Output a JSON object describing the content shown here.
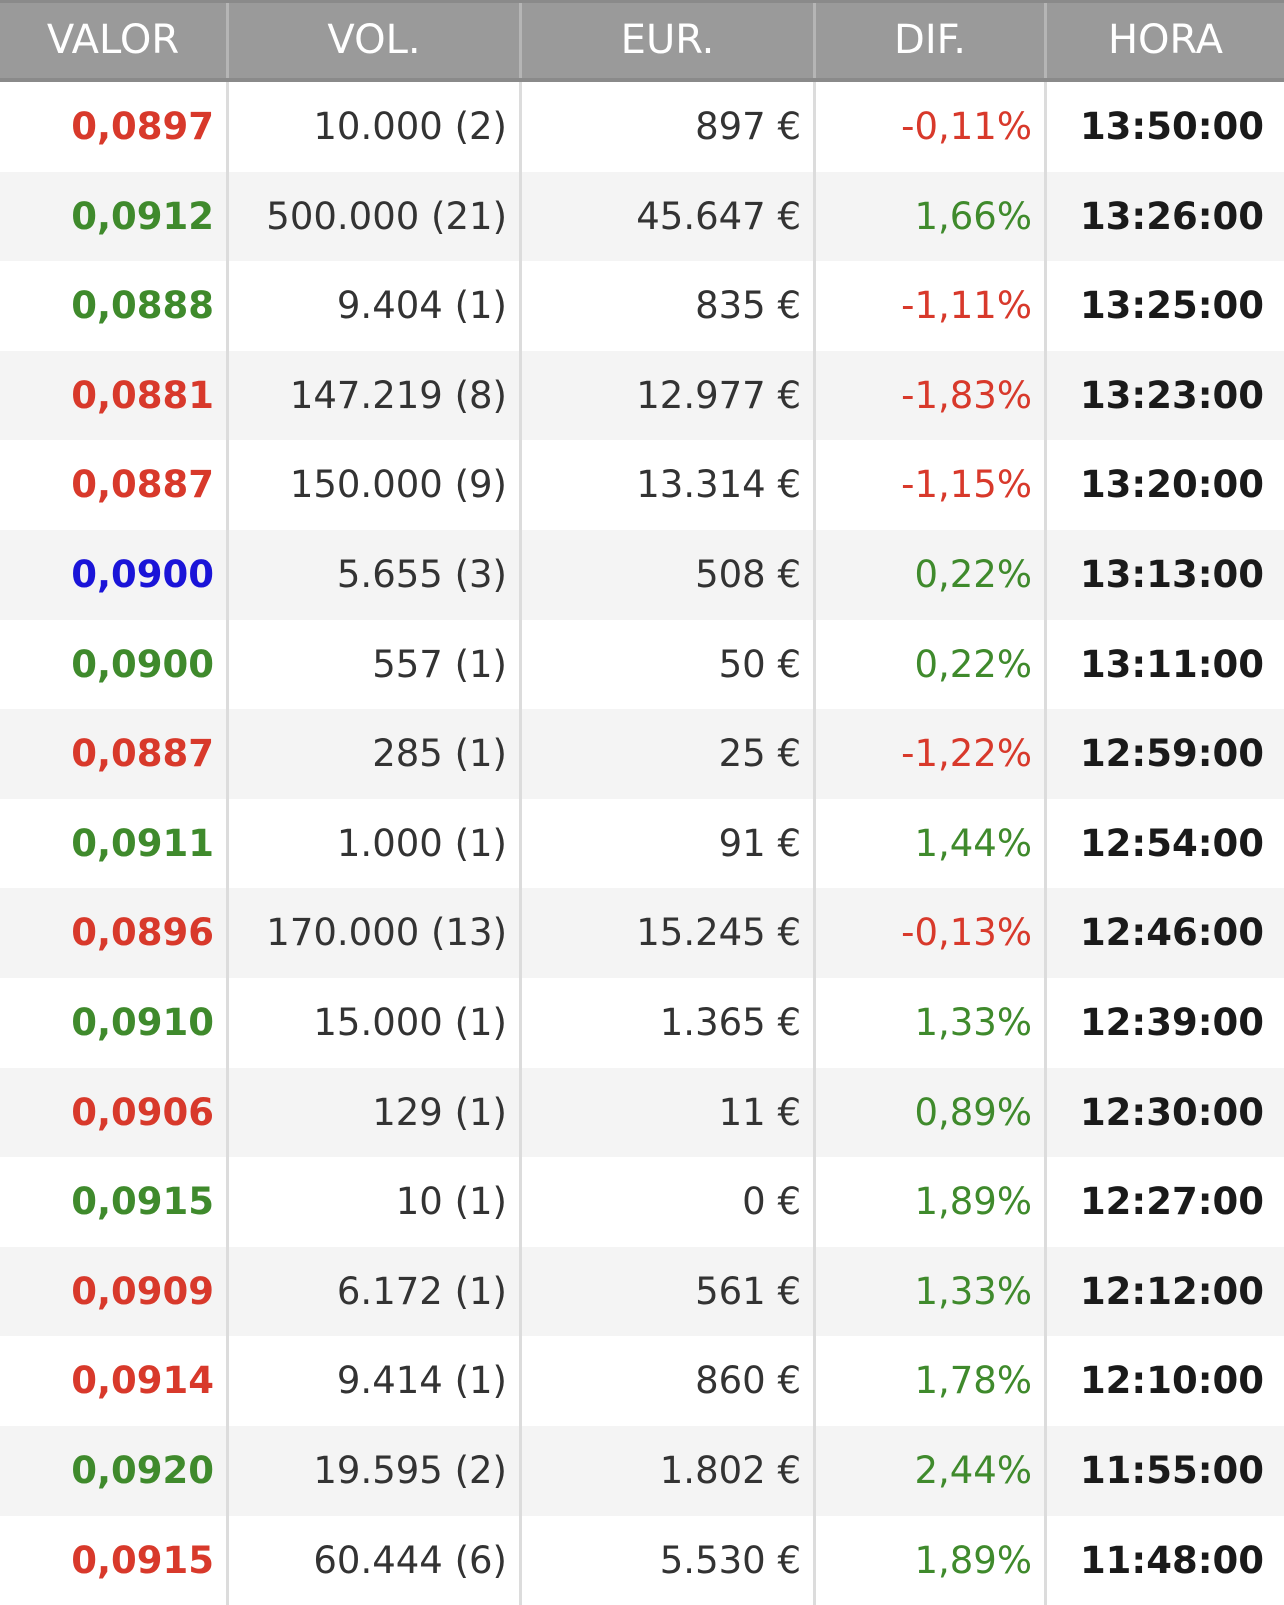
{
  "columns": {
    "valor": "VALOR",
    "vol": "VOL.",
    "eur": "EUR.",
    "dif": "DIF.",
    "hora": "HORA"
  },
  "colors": {
    "up": "#3f8a2c",
    "down": "#d8392b",
    "neutral": "#1a14d8",
    "header_bg": "#9a9a9a"
  },
  "rows": [
    {
      "valor": "0,0897",
      "valor_color": "red",
      "vol": "10.000 (2)",
      "eur": "897 €",
      "dif": "-0,11%",
      "dif_color": "red",
      "hora": "13:50:00"
    },
    {
      "valor": "0,0912",
      "valor_color": "green",
      "vol": "500.000 (21)",
      "eur": "45.647 €",
      "dif": "1,66%",
      "dif_color": "green",
      "hora": "13:26:00"
    },
    {
      "valor": "0,0888",
      "valor_color": "green",
      "vol": "9.404 (1)",
      "eur": "835 €",
      "dif": "-1,11%",
      "dif_color": "red",
      "hora": "13:25:00"
    },
    {
      "valor": "0,0881",
      "valor_color": "red",
      "vol": "147.219 (8)",
      "eur": "12.977 €",
      "dif": "-1,83%",
      "dif_color": "red",
      "hora": "13:23:00"
    },
    {
      "valor": "0,0887",
      "valor_color": "red",
      "vol": "150.000 (9)",
      "eur": "13.314 €",
      "dif": "-1,15%",
      "dif_color": "red",
      "hora": "13:20:00"
    },
    {
      "valor": "0,0900",
      "valor_color": "blue",
      "vol": "5.655 (3)",
      "eur": "508 €",
      "dif": "0,22%",
      "dif_color": "green",
      "hora": "13:13:00"
    },
    {
      "valor": "0,0900",
      "valor_color": "green",
      "vol": "557 (1)",
      "eur": "50 €",
      "dif": "0,22%",
      "dif_color": "green",
      "hora": "13:11:00"
    },
    {
      "valor": "0,0887",
      "valor_color": "red",
      "vol": "285 (1)",
      "eur": "25 €",
      "dif": "-1,22%",
      "dif_color": "red",
      "hora": "12:59:00"
    },
    {
      "valor": "0,0911",
      "valor_color": "green",
      "vol": "1.000 (1)",
      "eur": "91 €",
      "dif": "1,44%",
      "dif_color": "green",
      "hora": "12:54:00"
    },
    {
      "valor": "0,0896",
      "valor_color": "red",
      "vol": "170.000 (13)",
      "eur": "15.245 €",
      "dif": "-0,13%",
      "dif_color": "red",
      "hora": "12:46:00"
    },
    {
      "valor": "0,0910",
      "valor_color": "green",
      "vol": "15.000 (1)",
      "eur": "1.365 €",
      "dif": "1,33%",
      "dif_color": "green",
      "hora": "12:39:00"
    },
    {
      "valor": "0,0906",
      "valor_color": "red",
      "vol": "129 (1)",
      "eur": "11 €",
      "dif": "0,89%",
      "dif_color": "green",
      "hora": "12:30:00"
    },
    {
      "valor": "0,0915",
      "valor_color": "green",
      "vol": "10 (1)",
      "eur": "0 €",
      "dif": "1,89%",
      "dif_color": "green",
      "hora": "12:27:00"
    },
    {
      "valor": "0,0909",
      "valor_color": "red",
      "vol": "6.172 (1)",
      "eur": "561 €",
      "dif": "1,33%",
      "dif_color": "green",
      "hora": "12:12:00"
    },
    {
      "valor": "0,0914",
      "valor_color": "red",
      "vol": "9.414 (1)",
      "eur": "860 €",
      "dif": "1,78%",
      "dif_color": "green",
      "hora": "12:10:00"
    },
    {
      "valor": "0,0920",
      "valor_color": "green",
      "vol": "19.595 (2)",
      "eur": "1.802 €",
      "dif": "2,44%",
      "dif_color": "green",
      "hora": "11:55:00"
    },
    {
      "valor": "0,0915",
      "valor_color": "red",
      "vol": "60.444 (6)",
      "eur": "5.530 €",
      "dif": "1,89%",
      "dif_color": "green",
      "hora": "11:48:00"
    }
  ]
}
